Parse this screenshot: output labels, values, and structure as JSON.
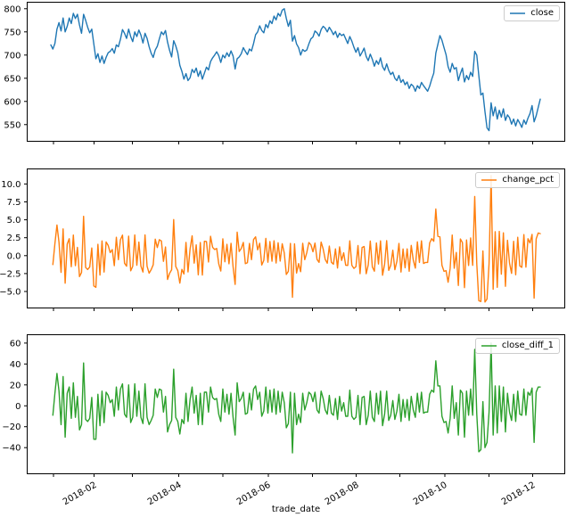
{
  "figure": {
    "background": "#ffffff",
    "spine_color": "#000000",
    "tick_color": "#000000"
  },
  "chart_data": {
    "type": "line",
    "xlabel": "trade_date",
    "x_tick_labels": [
      "2018-02",
      "2018-04",
      "2018-06",
      "2018-08",
      "2018-10",
      "2018-12"
    ],
    "x_range": "2018-01 to 2018-12",
    "subplots": [
      {
        "name": "close",
        "legend": "close",
        "color": "#1f77b4",
        "ylim": [
          514,
          814
        ],
        "yticks": [
          550,
          600,
          650,
          700,
          750,
          800
        ],
        "ytick_labels": [
          "550",
          "600",
          "650",
          "700",
          "750",
          "800"
        ],
        "values": [
          722,
          713,
          725,
          756,
          770,
          752,
          780,
          750,
          762,
          780,
          768,
          790,
          779,
          788,
          765,
          747,
          788,
          775,
          760,
          748,
          756,
          724,
          692,
          703,
          684,
          698,
          682,
          695,
          705,
          708,
          714,
          704,
          722,
          718,
          734,
          755,
          747,
          736,
          756,
          740,
          729,
          750,
          740,
          754,
          743,
          726,
          747,
          736,
          718,
          704,
          695,
          711,
          719,
          735,
          750,
          744,
          753,
          728,
          710,
          696,
          731,
          720,
          705,
          678,
          665,
          648,
          660,
          645,
          651,
          669,
          662,
          672,
          654,
          666,
          648,
          661,
          674,
          668,
          686,
          694,
          700,
          707,
          699,
          684,
          700,
          694,
          705,
          697,
          709,
          698,
          670,
          692,
          696,
          703,
          716,
          708,
          701,
          713,
          709,
          725,
          744,
          750,
          763,
          753,
          748,
          766,
          759,
          774,
          768,
          784,
          776,
          790,
          784,
          797,
          800,
          779,
          762,
          775,
          730,
          742,
          724,
          716,
          700,
          712,
          708,
          711,
          724,
          735,
          739,
          752,
          748,
          741,
          755,
          762,
          758,
          750,
          760,
          753,
          744,
          751,
          738,
          747,
          742,
          745,
          735,
          725,
          740,
          730,
          717,
          706,
          716,
          698,
          706,
          715,
          697,
          688,
          702,
          691,
          676,
          688,
          680,
          694,
          675,
          667,
          681,
          667,
          658,
          663,
          650,
          645,
          656,
          641,
          647,
          636,
          642,
          628,
          637,
          633,
          622,
          634,
          628,
          641,
          634,
          628,
          622,
          633,
          648,
          661,
          704,
          723,
          742,
          732,
          716,
          701,
          675,
          663,
          682,
          670,
          673,
          645,
          660,
          672,
          642,
          656,
          647,
          663,
          654,
          708,
          700,
          656,
          614,
          618,
          578,
          543,
          537,
          597,
          569,
          588,
          562,
          581,
          566,
          584,
          559,
          571,
          565,
          551,
          562,
          547,
          561,
          553,
          544,
          560,
          551,
          564,
          574,
          591,
          556,
          569,
          587,
          605
        ]
      },
      {
        "name": "change_pct",
        "legend": "change_pct",
        "color": "#ff7f0e",
        "ylim": [
          -7.3,
          12.1
        ],
        "yticks": [
          -5.0,
          -2.5,
          0.0,
          2.5,
          5.0,
          7.5,
          10.0
        ],
        "ytick_labels": [
          "−5.0",
          "−2.5",
          "0.0",
          "2.5",
          "5.0",
          "7.5",
          "10.0"
        ],
        "derived_from": "close",
        "transform": "pct_change"
      },
      {
        "name": "close_diff_1",
        "legend": "close_diff_1",
        "color": "#2ca02c",
        "ylim": [
          -65,
          68
        ],
        "yticks": [
          -40,
          -20,
          0,
          20,
          40,
          60
        ],
        "ytick_labels": [
          "−40",
          "−20",
          "0",
          "20",
          "40",
          "60"
        ],
        "derived_from": "close",
        "transform": "diff"
      }
    ]
  }
}
